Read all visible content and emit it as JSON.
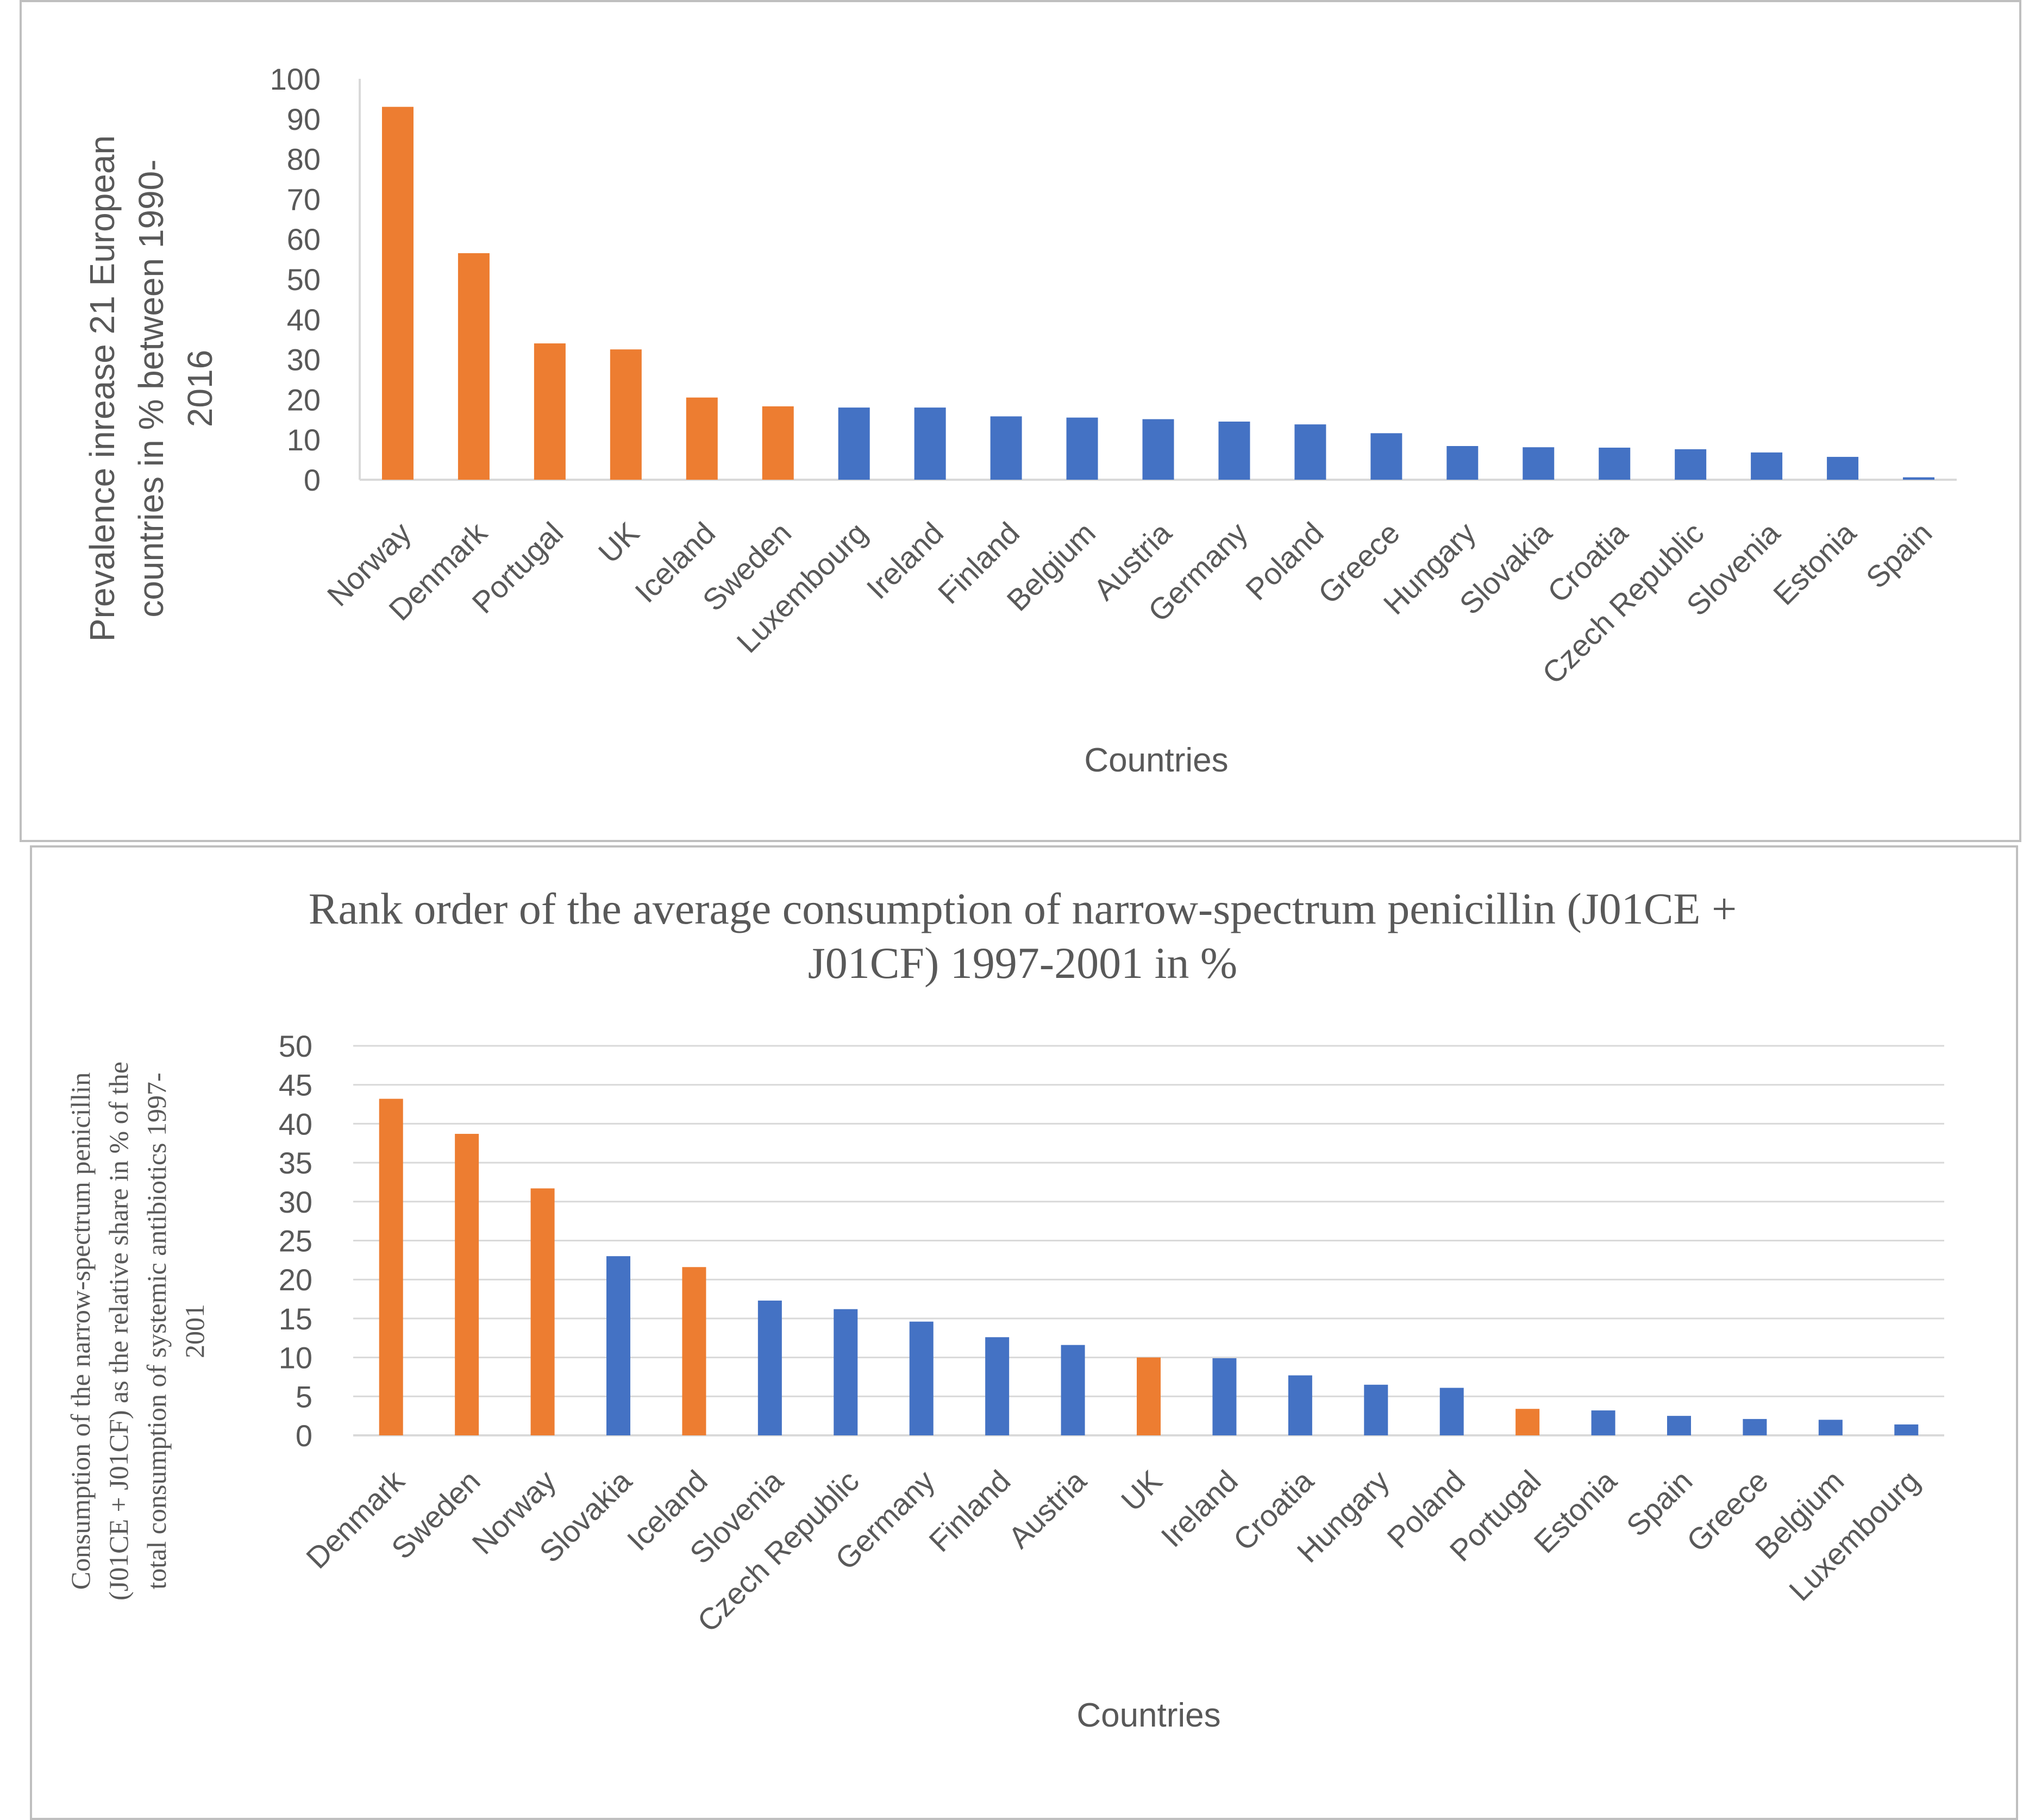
{
  "colors": {
    "highlight": "#ED7D31",
    "base": "#4472C4",
    "axis": "#D9D9D9",
    "text": "#595959",
    "frame": "#BFBFBF"
  },
  "chart_data": [
    {
      "type": "bar",
      "title": "",
      "xlabel": "Countries",
      "ylabel_lines": [
        "Prevalence inrease 21 European",
        "countries in % between 1990-",
        "2016"
      ],
      "ylim": [
        0,
        100
      ],
      "yticks": [
        "0",
        "10",
        "20",
        "30",
        "40",
        "50",
        "60",
        "70",
        "80",
        "90",
        "100"
      ],
      "grid": false,
      "categories": [
        "Norway",
        "Denmark",
        "Portugal",
        "UK",
        "Iceland",
        "Sweden",
        "Luxembourg",
        "Ireland",
        "Finland",
        "Belgium",
        "Austria",
        "Germany",
        "Poland",
        "Greece",
        "Hungary",
        "Slovakia",
        "Croatia",
        "Czech Republic",
        "Slovenia",
        "Estonia",
        "Spain"
      ],
      "values": [
        93,
        56.5,
        34,
        32.5,
        20.5,
        18.3,
        18,
        18,
        15.8,
        15.5,
        15.1,
        14.5,
        13.8,
        11.6,
        8.4,
        8.1,
        8,
        7.6,
        6.8,
        5.7,
        0.6
      ],
      "highlighted": [
        "Norway",
        "Denmark",
        "Portugal",
        "UK",
        "Iceland",
        "Sweden"
      ]
    },
    {
      "type": "bar",
      "title_lines": [
        "Rank order of the average consumption of narrow-spectrum penicillin (J01CE +",
        "J01CF) 1997-2001 in %"
      ],
      "xlabel": "Countries",
      "ylabel_lines": [
        "Consumption of the narrow-spectrum penicillin",
        "(J01CE + J01CF) as the relative share in % of the",
        "total consumption of systemic antibiotics 1997-",
        "2001"
      ],
      "ylim": [
        0,
        50
      ],
      "yticks": [
        "0",
        "5",
        "10",
        "15",
        "20",
        "25",
        "30",
        "35",
        "40",
        "45",
        "50"
      ],
      "grid": true,
      "categories": [
        "Denmark",
        "Sweden",
        "Norway",
        "Slovakia",
        "Iceland",
        "Slovenia",
        "Czech Republic",
        "Germany",
        "Finland",
        "Austria",
        "UK",
        "Ireland",
        "Croatia",
        "Hungary",
        "Poland",
        "Portugal",
        "Estonia",
        "Spain",
        "Greece",
        "Belgium",
        "Luxembourg"
      ],
      "values": [
        43.2,
        38.7,
        31.7,
        23,
        21.6,
        17.3,
        16.2,
        14.6,
        12.6,
        11.6,
        10,
        9.9,
        7.7,
        6.5,
        6.1,
        3.4,
        3.2,
        2.5,
        2.1,
        2,
        1.4
      ],
      "highlighted": [
        "Denmark",
        "Sweden",
        "Norway",
        "Iceland",
        "UK",
        "Portugal"
      ]
    }
  ]
}
